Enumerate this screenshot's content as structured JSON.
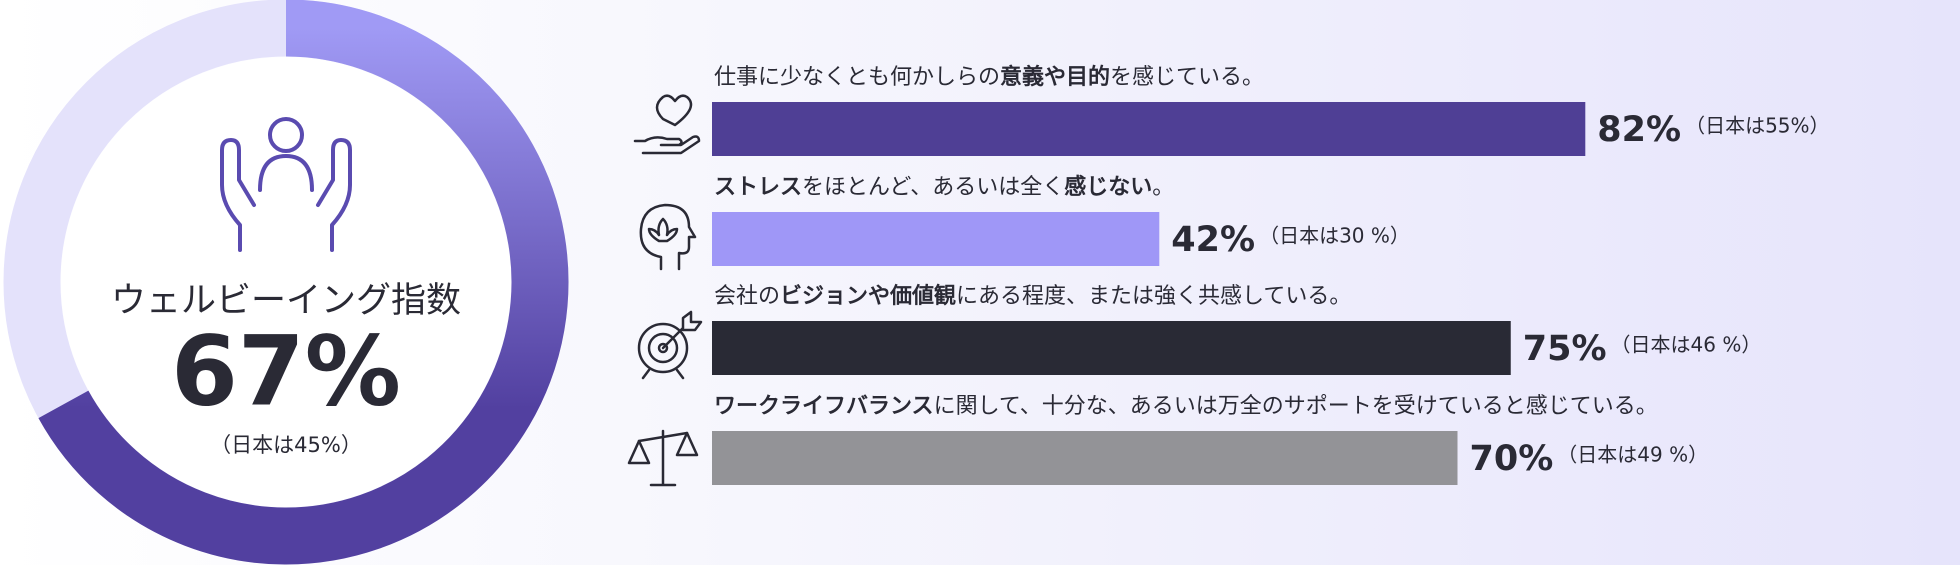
{
  "chart_data": [
    {
      "type": "gauge",
      "title": "ウェルビーイング指数",
      "value": 67,
      "value_label": "67%",
      "note": "（日本は45%）",
      "ylim": [
        0,
        100
      ],
      "color": "#5240a0",
      "color_start": "#a09af5",
      "track_color": "#e4e2fb"
    },
    {
      "type": "hbar",
      "categories": [
        [
          {
            "text": "仕事に少なくとも何かしらの",
            "bold": false
          },
          {
            "text": "意義や目的",
            "bold": true
          },
          {
            "text": "を感じている。",
            "bold": false
          }
        ],
        [
          {
            "text": "ストレス",
            "bold": true
          },
          {
            "text": "をほとんど、あるいは全く",
            "bold": false
          },
          {
            "text": "感じない",
            "bold": true
          },
          {
            "text": "。",
            "bold": false
          }
        ],
        [
          {
            "text": "会社の",
            "bold": false
          },
          {
            "text": "ビジョンや価値観",
            "bold": true
          },
          {
            "text": "にある程度、または強く共感している。",
            "bold": false
          }
        ],
        [
          {
            "text": "ワークライフバランス",
            "bold": true
          },
          {
            "text": "に関して、十分な、あるいは万全のサポートを受けていると感じている。",
            "bold": false
          }
        ]
      ],
      "values": [
        82,
        42,
        75,
        70
      ],
      "value_labels": [
        "82%",
        "42%",
        "75%",
        "70%"
      ],
      "notes": [
        "（日本は55%）",
        "（日本は30 %）",
        "（日本は46 %）",
        "（日本は49 %）"
      ],
      "colors": [
        "#4f3f95",
        "#9f97f7",
        "#292a35",
        "#939397"
      ],
      "xlim": [
        0,
        100
      ]
    }
  ]
}
